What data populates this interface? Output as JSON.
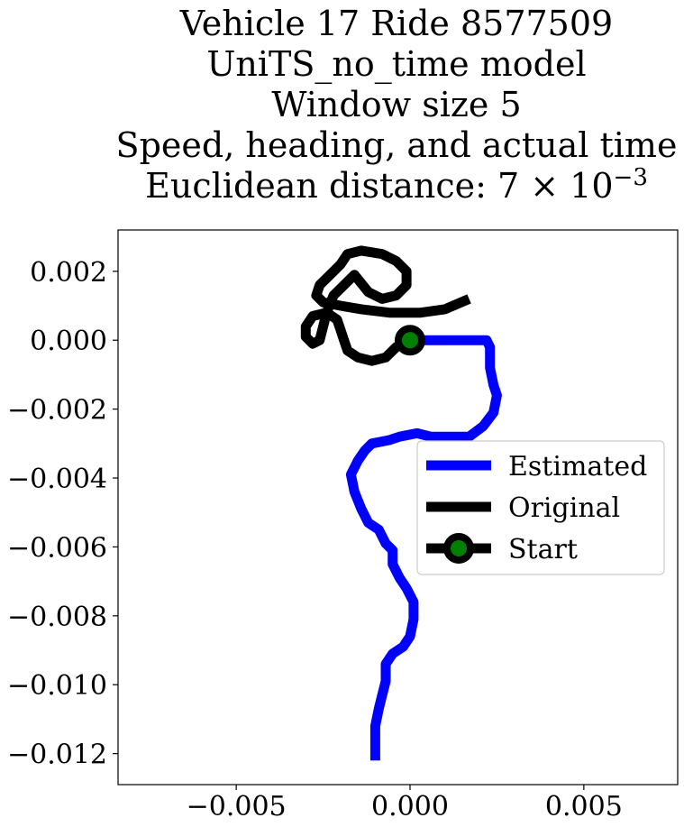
{
  "chart_data": {
    "type": "line",
    "title_lines": [
      "Vehicle 17 Ride 8577509",
      "UniTS_no_time model",
      "Window size 5",
      "Speed, heading, and actual time",
      "Euclidean distance: 7 × 10",
      "−3"
    ],
    "xlim": [
      -0.0084,
      0.0077
    ],
    "ylim": [
      -0.0129,
      0.0032
    ],
    "xticks": [
      -0.005,
      0.0,
      0.005
    ],
    "xtick_labels": [
      "−0.005",
      "0.000",
      "0.005"
    ],
    "yticks": [
      0.002,
      0.0,
      -0.002,
      -0.004,
      -0.006,
      -0.008,
      -0.01,
      -0.012
    ],
    "ytick_labels": [
      "0.002",
      "0.000",
      "−0.002",
      "−0.004",
      "−0.006",
      "−0.008",
      "−0.010",
      "−0.012"
    ],
    "legend": {
      "placement": "center-right",
      "entries": [
        "Estimated",
        "Original",
        "Start"
      ]
    },
    "series": [
      {
        "name": "Estimated",
        "color": "#0000ff",
        "points": [
          [
            0.0,
            0.0
          ],
          [
            0.0004,
            0.0
          ],
          [
            0.0012,
            0.0
          ],
          [
            0.0018,
            0.0
          ],
          [
            0.0022,
            0.0
          ],
          [
            0.0023,
            -0.0002
          ],
          [
            0.0023,
            -0.0008
          ],
          [
            0.0024,
            -0.0013
          ],
          [
            0.0025,
            -0.0016
          ],
          [
            0.0024,
            -0.0021
          ],
          [
            0.0021,
            -0.0025
          ],
          [
            0.0017,
            -0.0028
          ],
          [
            0.0011,
            -0.0028
          ],
          [
            0.0006,
            -0.0028
          ],
          [
            0.0002,
            -0.0027
          ],
          [
            -0.0003,
            -0.0028
          ],
          [
            -0.0006,
            -0.0029
          ],
          [
            -0.0011,
            -0.003
          ],
          [
            -0.0013,
            -0.0032
          ],
          [
            -0.0015,
            -0.0035
          ],
          [
            -0.0017,
            -0.0039
          ],
          [
            -0.0016,
            -0.0044
          ],
          [
            -0.0014,
            -0.0049
          ],
          [
            -0.0012,
            -0.0053
          ],
          [
            -0.0009,
            -0.0055
          ],
          [
            -0.0007,
            -0.0059
          ],
          [
            -0.0005,
            -0.0061
          ],
          [
            -0.0005,
            -0.0065
          ],
          [
            -0.0003,
            -0.0069
          ],
          [
            -0.0001,
            -0.0072
          ],
          [
            0.0001,
            -0.0076
          ],
          [
            0.0001,
            -0.0081
          ],
          [
            0.0,
            -0.0086
          ],
          [
            -0.0002,
            -0.0089
          ],
          [
            -0.0005,
            -0.0091
          ],
          [
            -0.0007,
            -0.0094
          ],
          [
            -0.0007,
            -0.0099
          ],
          [
            -0.0008,
            -0.0103
          ],
          [
            -0.0009,
            -0.0107
          ],
          [
            -0.001,
            -0.0112
          ],
          [
            -0.001,
            -0.0117
          ],
          [
            -0.001,
            -0.0122
          ]
        ]
      },
      {
        "name": "Original",
        "color": "#000000",
        "points": [
          [
            0.0,
            0.0
          ],
          [
            -0.0004,
            -0.0002
          ],
          [
            -0.0007,
            -0.0005
          ],
          [
            -0.0011,
            -0.0006
          ],
          [
            -0.0015,
            -0.0005
          ],
          [
            -0.0018,
            -0.0003
          ],
          [
            -0.0019,
            0.0
          ],
          [
            -0.002,
            0.0003
          ],
          [
            -0.0021,
            0.0006
          ],
          [
            -0.0024,
            0.0008
          ],
          [
            -0.0028,
            0.0007
          ],
          [
            -0.003,
            0.0004
          ],
          [
            -0.003,
            0.0001
          ],
          [
            -0.0028,
            -0.0001
          ],
          [
            -0.0026,
            0.0
          ],
          [
            -0.0025,
            0.0004
          ],
          [
            -0.0024,
            0.0008
          ],
          [
            -0.0022,
            0.0013
          ],
          [
            -0.0019,
            0.0016
          ],
          [
            -0.0016,
            0.0019
          ],
          [
            -0.0012,
            0.0014
          ],
          [
            -0.0008,
            0.0012
          ],
          [
            -0.0004,
            0.0013
          ],
          [
            -0.0001,
            0.0016
          ],
          [
            -0.0001,
            0.002
          ],
          [
            -0.0004,
            0.0023
          ],
          [
            -0.0008,
            0.0025
          ],
          [
            -0.0014,
            0.0026
          ],
          [
            -0.0018,
            0.0025
          ],
          [
            -0.002,
            0.0022
          ],
          [
            -0.0023,
            0.0019
          ],
          [
            -0.0026,
            0.0016
          ],
          [
            -0.0027,
            0.0013
          ],
          [
            -0.0025,
            0.0011
          ],
          [
            -0.002,
            0.001
          ],
          [
            -0.0014,
            0.0009
          ],
          [
            -0.0006,
            0.0008
          ],
          [
            0.0003,
            0.0008
          ],
          [
            0.001,
            0.0009
          ],
          [
            0.0017,
            0.0012
          ]
        ]
      }
    ],
    "start_point": {
      "name": "Start",
      "x": 0.0,
      "y": 0.0,
      "fill": "#008000",
      "edge": "#000000"
    }
  }
}
